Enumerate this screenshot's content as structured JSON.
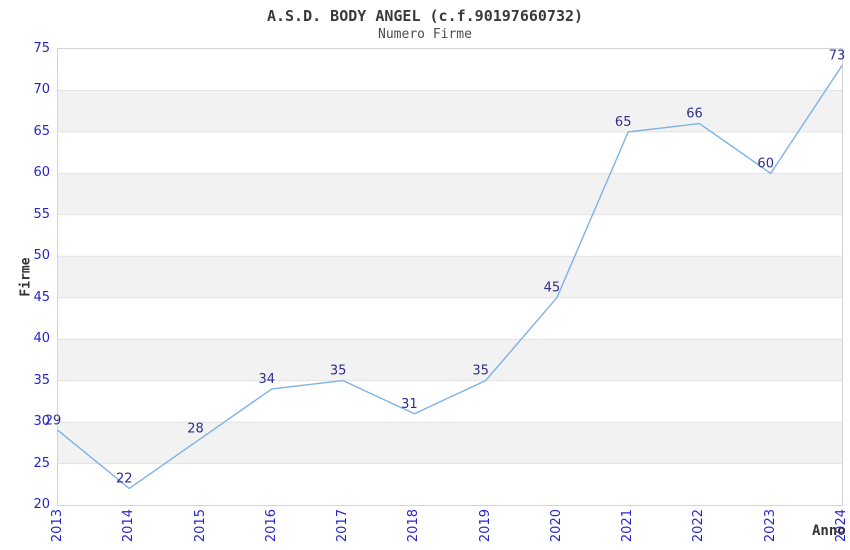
{
  "page": {
    "background": "#ffffff"
  },
  "chart_data": {
    "type": "line",
    "title": "A.S.D. BODY ANGEL (c.f.90197660732)",
    "subtitle": "Numero Firme",
    "xlabel": "Anno",
    "ylabel": "Firme",
    "x": [
      2013,
      2014,
      2015,
      2016,
      2017,
      2018,
      2019,
      2020,
      2021,
      2022,
      2023,
      2024
    ],
    "series": [
      {
        "name": "Numero Firme",
        "values": [
          29,
          22,
          28,
          34,
          35,
          31,
          35,
          45,
          65,
          66,
          60,
          73
        ]
      }
    ],
    "point_labels": [
      "29",
      "22",
      "28",
      "34",
      "35",
      "31",
      "35",
      "45",
      "65",
      "66",
      "60",
      "73"
    ],
    "xticks": [
      "2013",
      "2014",
      "2015",
      "2016",
      "2017",
      "2018",
      "2019",
      "2020",
      "2021",
      "2022",
      "2023",
      "2024"
    ],
    "yticks": [
      20,
      25,
      30,
      35,
      40,
      45,
      50,
      55,
      60,
      65,
      70,
      75
    ],
    "ylim": [
      20,
      75
    ],
    "xlim": [
      2013,
      2024
    ],
    "grid": "horizontal-lines-with-alternating-bands",
    "legend": "none",
    "markers": "none",
    "x_tick_rotation_deg": 90,
    "colors": {
      "line": "#7db2e6",
      "tick_label": "#2525cd",
      "data_label": "#2e2e8e",
      "band_gray": "#f2f2f2",
      "grid_line": "#e3e3e3",
      "plot_border": "#d4d4d4",
      "title": "#3a3a3a",
      "subtitle": "#4d4d4d",
      "axis_title": "#333333",
      "background": "#ffffff"
    }
  }
}
